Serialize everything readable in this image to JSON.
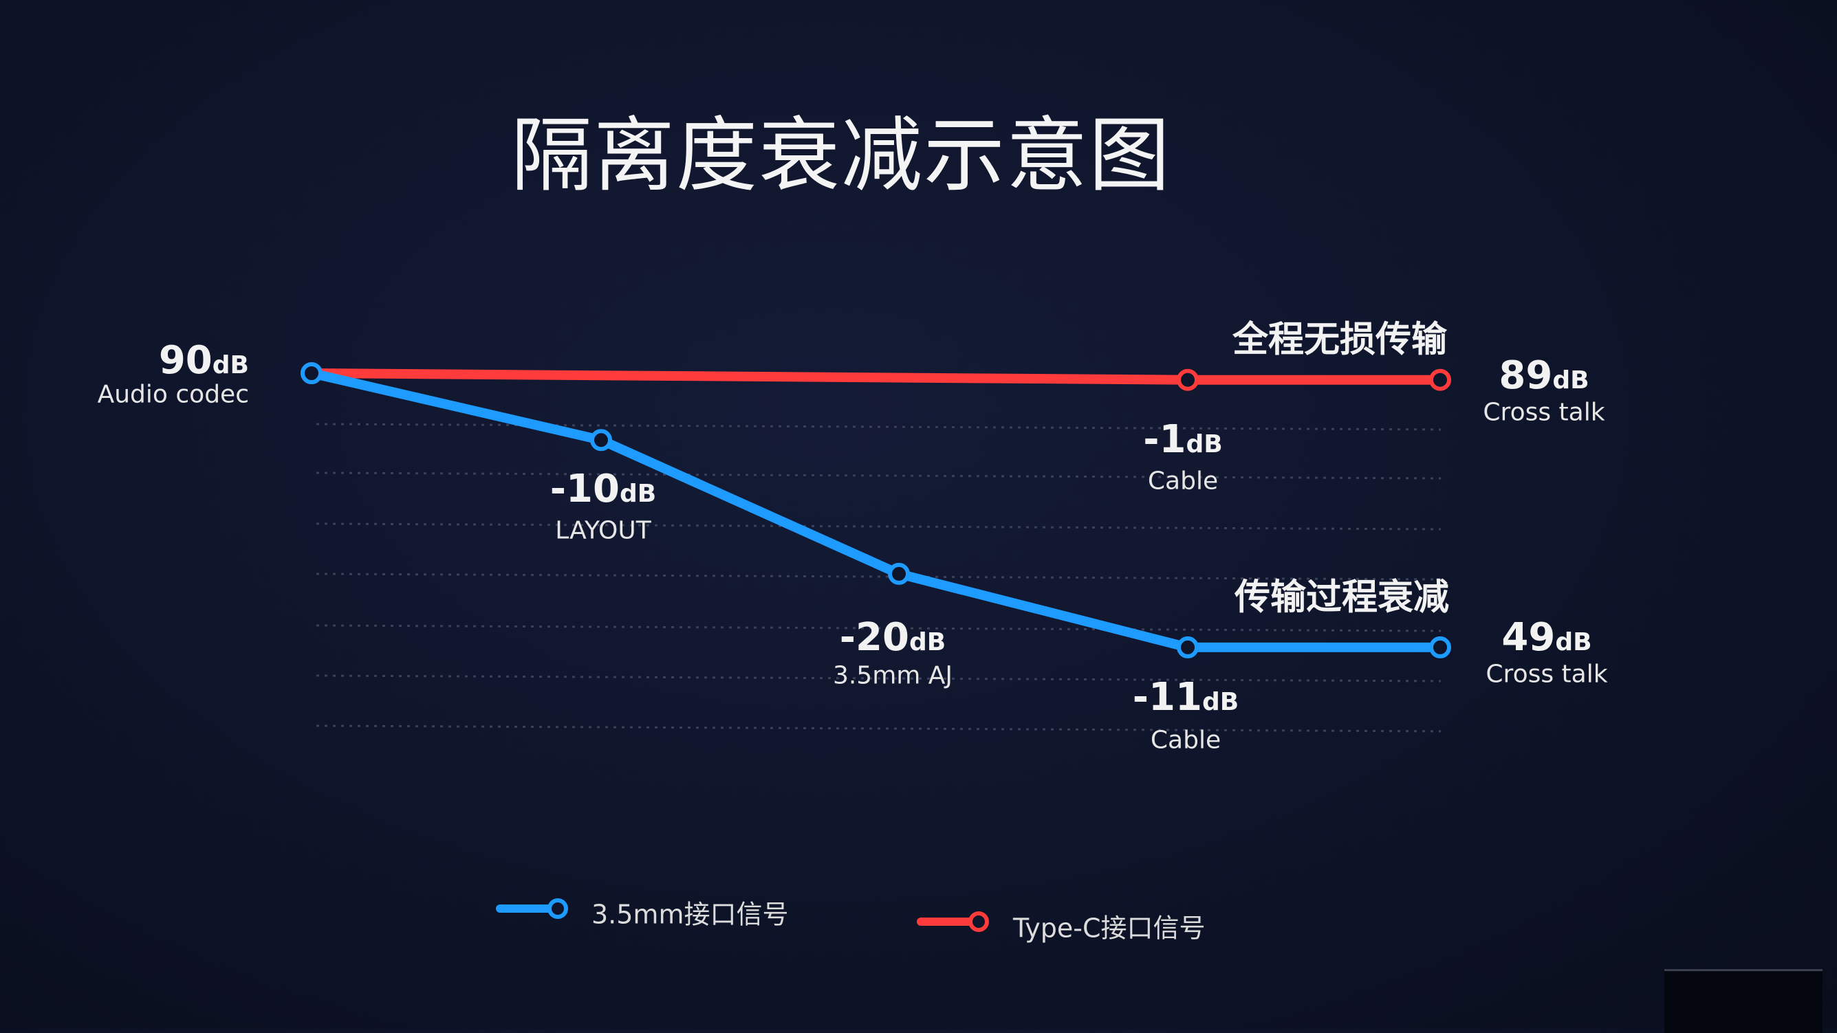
{
  "chart_data": {
    "type": "line",
    "title": "隔离度衰减示意图",
    "stages": [
      "Audio codec",
      "LAYOUT",
      "3.5mm AJ",
      "Cable",
      "Cross talk"
    ],
    "series": [
      {
        "name": "3.5mm接口信号",
        "color": "#1e9bff",
        "stage_index": [
          0,
          1,
          2,
          3,
          4
        ],
        "values": [
          90,
          80,
          60,
          49,
          49
        ]
      },
      {
        "name": "Type-C接口信号",
        "color": "#ff3b3b",
        "stage_index": [
          0,
          3,
          4
        ],
        "values": [
          90,
          89,
          89
        ]
      }
    ],
    "unit": "dB",
    "grid": true,
    "legend": "bottom",
    "annotations": {
      "start": {
        "value": "90",
        "unit": "dB",
        "label": "Audio codec"
      },
      "layout": {
        "value": "-10",
        "unit": "dB",
        "label": "LAYOUT"
      },
      "aj": {
        "value": "-20",
        "unit": "dB",
        "label": "3.5mm AJ"
      },
      "red_cable": {
        "value": "-1",
        "unit": "dB",
        "label": "Cable"
      },
      "blue_cable": {
        "value": "-11",
        "unit": "dB",
        "label": "Cable"
      },
      "red_end": {
        "value": "89",
        "unit": "dB",
        "label": "Cross talk"
      },
      "blue_end": {
        "value": "49",
        "unit": "dB",
        "label": "Cross talk"
      },
      "red_note": "全程无损传输",
      "blue_note": "传输过程衰减"
    }
  }
}
